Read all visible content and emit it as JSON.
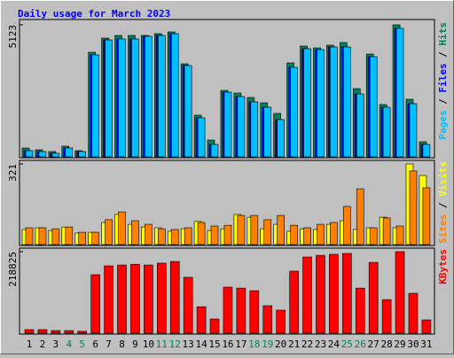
{
  "legend_separator": "/",
  "chart_data": [
    {
      "type": "bar",
      "title": "Daily usage for March 2023",
      "ylim": [
        0,
        5123
      ],
      "yticks": [
        5123
      ],
      "series": [
        {
          "name": "Hits",
          "color": "#00805c",
          "values": [
            344,
            275,
            206,
            413,
            241,
            4057,
            4607,
            4710,
            4710,
            4710,
            4779,
            4848,
            3610,
            1616,
            653,
            2579,
            2476,
            2304,
            2097,
            1685,
            3645,
            4298,
            4229,
            4332,
            4435,
            2647,
            3988,
            2029,
            5123,
            2235,
            584
          ]
        },
        {
          "name": "Files",
          "color": "#0000ff",
          "values": [
            241,
            206,
            138,
            344,
            206,
            3954,
            4538,
            4573,
            4573,
            4676,
            4710,
            4779,
            3541,
            1513,
            481,
            2510,
            2338,
            2132,
            1925,
            1444,
            3473,
            4195,
            4160,
            4263,
            4263,
            2441,
            3885,
            1925,
            4985,
            2063,
            481
          ]
        },
        {
          "name": "Pages",
          "color": "#00c0ff",
          "values": [
            241,
            206,
            138,
            344,
            206,
            3954,
            4538,
            4573,
            4573,
            4676,
            4710,
            4779,
            3541,
            1513,
            481,
            2510,
            2338,
            2132,
            1925,
            1444,
            3473,
            4195,
            4160,
            4263,
            4263,
            2441,
            3885,
            1925,
            4985,
            2063,
            481
          ]
        }
      ]
    },
    {
      "type": "bar",
      "ylim": [
        0,
        321
      ],
      "yticks": [
        321
      ],
      "series": [
        {
          "name": "Visits",
          "color": "#ffff00",
          "values": [
            60,
            67,
            56,
            70,
            46,
            49,
            88,
            120,
            81,
            70,
            67,
            53,
            63,
            92,
            56,
            63,
            120,
            109,
            63,
            81,
            53,
            63,
            60,
            81,
            95,
            60,
            67,
            109,
            67,
            321,
            275
          ]
        },
        {
          "name": "Sites",
          "color": "#ff8000",
          "values": [
            67,
            67,
            63,
            70,
            49,
            49,
            99,
            130,
            95,
            81,
            63,
            60,
            67,
            88,
            74,
            77,
            116,
            116,
            99,
            116,
            77,
            67,
            81,
            88,
            152,
            222,
            67,
            106,
            74,
            293,
            226
          ]
        }
      ]
    },
    {
      "type": "bar",
      "ylim": [
        0,
        218825
      ],
      "yticks": [
        218825
      ],
      "categories": [
        "1",
        "2",
        "3",
        "4",
        "5",
        "6",
        "7",
        "8",
        "9",
        "10",
        "11",
        "12",
        "13",
        "14",
        "15",
        "16",
        "17",
        "18",
        "19",
        "20",
        "21",
        "22",
        "23",
        "24",
        "25",
        "26",
        "27",
        "28",
        "29",
        "30",
        "31"
      ],
      "category_colors": [
        "#000000",
        "#000000",
        "#000000",
        "#00805c",
        "#00805c",
        "#000000",
        "#000000",
        "#000000",
        "#000000",
        "#000000",
        "#00805c",
        "#00805c",
        "#000000",
        "#000000",
        "#000000",
        "#000000",
        "#000000",
        "#00805c",
        "#00805c",
        "#000000",
        "#000000",
        "#000000",
        "#000000",
        "#000000",
        "#00805c",
        "#00805c",
        "#000000",
        "#000000",
        "#000000",
        "#000000",
        "#000000"
      ],
      "series": [
        {
          "name": "KBytes",
          "color": "#ff0000",
          "values": [
            9500,
            9500,
            7000,
            7000,
            5000,
            157000,
            180700,
            183000,
            185000,
            183000,
            188000,
            192500,
            150000,
            71000,
            38000,
            123700,
            121000,
            114000,
            73700,
            61800,
            166500,
            204500,
            209000,
            211700,
            214000,
            121000,
            190000,
            90000,
            218825,
            107000,
            35700
          ]
        }
      ]
    }
  ]
}
